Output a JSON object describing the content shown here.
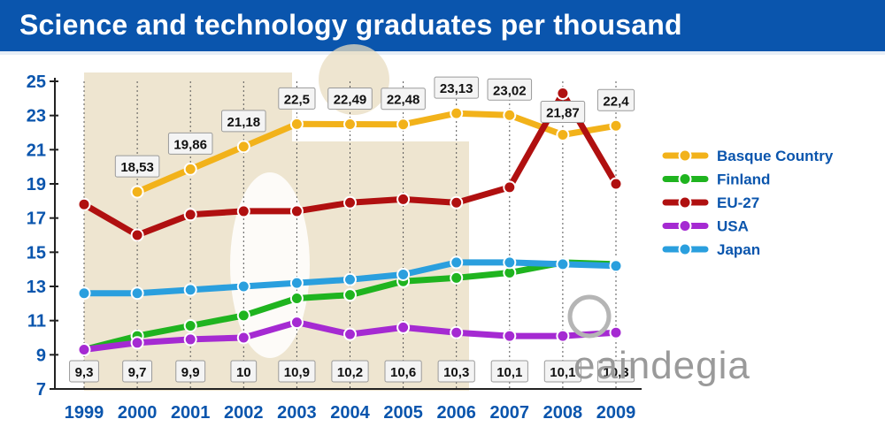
{
  "header": {
    "title": "Science and technology graduates per thousand"
  },
  "brand": {
    "name": "eaindegia"
  },
  "colors": {
    "title_bar": "#0a55ad",
    "axis_text": "#0a55ad"
  },
  "chart_data": {
    "type": "line",
    "title": "Science and technology graduates per thousand",
    "xlabel": "",
    "ylabel": "",
    "x": [
      "1999",
      "2000",
      "2001",
      "2002",
      "2003",
      "2004",
      "2005",
      "2006",
      "2007",
      "2008",
      "2009"
    ],
    "yticks": [
      "25",
      "23",
      "21",
      "19",
      "17",
      "15",
      "13",
      "11",
      "9",
      "7"
    ],
    "ylim": [
      7,
      25
    ],
    "grid": "vertical dotted lines at each year",
    "legend_position": "right",
    "series": [
      {
        "name": "Basque Country",
        "color": "#f2b21a",
        "values": [
          null,
          18.53,
          19.86,
          21.18,
          22.5,
          22.49,
          22.48,
          23.13,
          23.02,
          21.87,
          22.4
        ],
        "labels": [
          "",
          "18,53",
          "19,86",
          "21,18",
          "22,5",
          "22,49",
          "22,48",
          "23,13",
          "23,02",
          "21,87",
          "22,4"
        ]
      },
      {
        "name": "Finland",
        "color": "#1fb41f",
        "values": [
          9.3,
          10.1,
          10.7,
          11.3,
          12.3,
          12.5,
          13.3,
          13.5,
          13.8,
          14.4,
          14.3
        ],
        "labels": []
      },
      {
        "name": "EU-27",
        "color": "#b01010",
        "values": [
          17.8,
          16.0,
          17.2,
          17.4,
          17.4,
          17.9,
          18.1,
          17.9,
          18.8,
          24.3,
          19.0
        ],
        "labels": []
      },
      {
        "name": "USA",
        "color": "#a52ad2",
        "values": [
          9.3,
          9.7,
          9.9,
          10.0,
          10.9,
          10.2,
          10.6,
          10.3,
          10.1,
          10.1,
          10.3
        ],
        "labels": [
          "9,3",
          "9,7",
          "9,9",
          "10",
          "10,9",
          "10,2",
          "10,6",
          "10,3",
          "10,1",
          "10,1",
          "10,3"
        ]
      },
      {
        "name": "Japan",
        "color": "#2a9fde",
        "values": [
          12.6,
          12.6,
          12.8,
          13.0,
          13.2,
          13.4,
          13.7,
          14.4,
          14.4,
          14.3,
          14.2
        ],
        "labels": []
      }
    ]
  }
}
